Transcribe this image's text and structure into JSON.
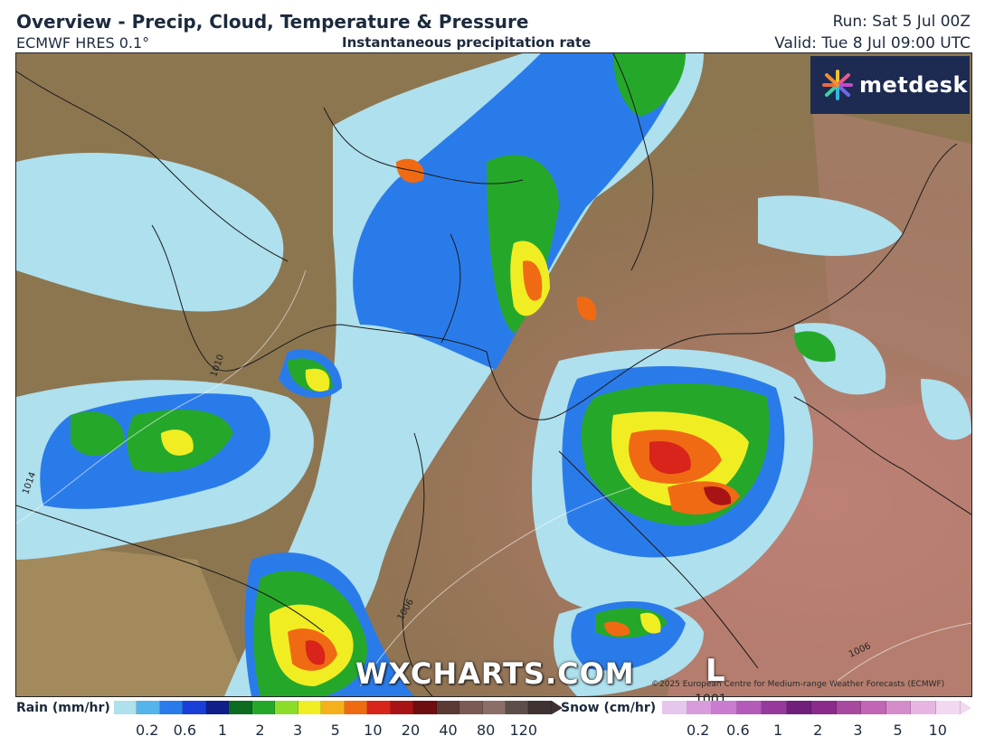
{
  "header": {
    "title": "Overview - Precip, Cloud, Temperature & Pressure",
    "model": "ECMWF HRES 0.1°",
    "subtitle": "Instantaneous precipitation rate",
    "run": "Run: Sat 5 Jul 00Z",
    "valid": "Valid: Tue 8 Jul 09:00 UTC"
  },
  "logo": {
    "text": "metdesk",
    "icon": "metdesk-starburst-icon"
  },
  "map": {
    "watermark": "WXCHARTS.COM",
    "copyright": "©2025 European Centre for Medium-range Weather Forecasts (ECMWF)",
    "low_pressure": {
      "letter": "L",
      "value": "1001"
    },
    "isobar_labels": [
      "1014",
      "1010",
      "1006",
      "1006"
    ]
  },
  "legend": {
    "rain": {
      "label": "Rain (mm/hr)",
      "ticks": [
        "0.2",
        "0.6",
        "1",
        "2",
        "3",
        "5",
        "10",
        "20",
        "40",
        "80",
        "120"
      ],
      "colors": [
        "#aee0ee",
        "#55b4ec",
        "#2a7bea",
        "#1a3fd8",
        "#101e8c",
        "#0c6b1e",
        "#25a82a",
        "#8cdc2a",
        "#f0ee22",
        "#f5b11c",
        "#f06a14",
        "#d8241a",
        "#a81416",
        "#6e0e10",
        "#5a3a34",
        "#7a5a52",
        "#8a6e68",
        "#5e4e4a",
        "#3e3232"
      ]
    },
    "snow": {
      "label": "Snow (cm/hr)",
      "ticks": [
        "0.2",
        "0.6",
        "1",
        "2",
        "3",
        "5",
        "10"
      ],
      "colors": [
        "#e6c6ec",
        "#d89cdc",
        "#c97ccf",
        "#b45ab8",
        "#96399c",
        "#70207a",
        "#8c2a8c",
        "#a8489e",
        "#c066b4",
        "#d48cca",
        "#e6b6e0",
        "#f2d8f0"
      ]
    }
  },
  "colors": {
    "header_text": "#1c2a3c",
    "logo_bg": "#1d2b52",
    "land_dry": "#8c7650"
  }
}
